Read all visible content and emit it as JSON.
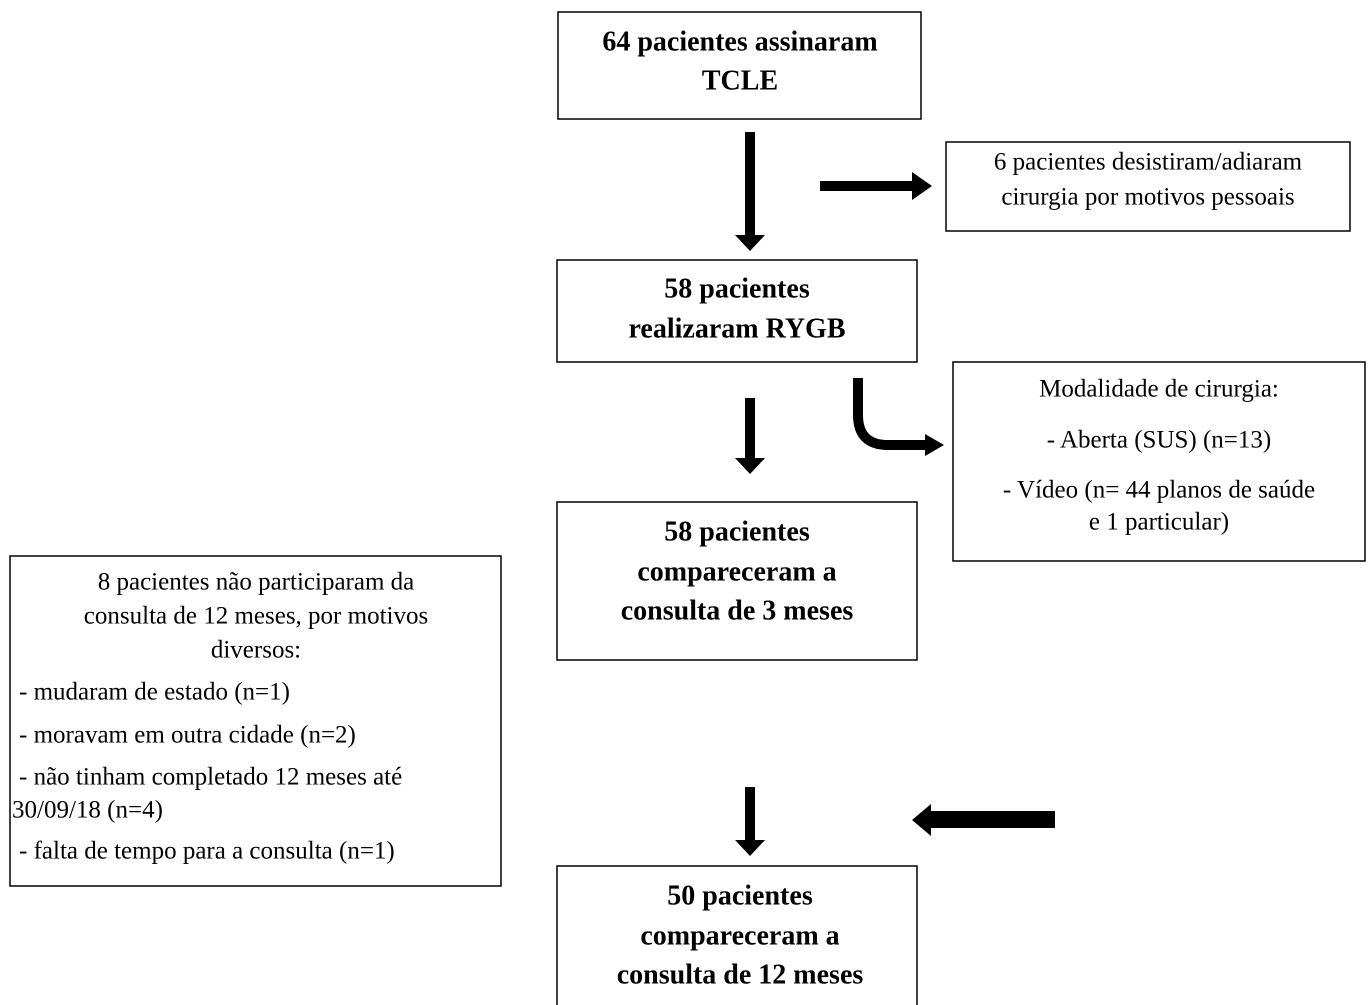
{
  "nodes": [
    {
      "lines": [
        "64 pacientes assinaram",
        "TCLE"
      ]
    },
    {
      "lines": [
        "6 pacientes desistiram/adiaram",
        "cirurgia por motivos pessoais"
      ]
    },
    {
      "lines": [
        "58 pacientes",
        "realizaram RYGB"
      ]
    },
    {
      "lines": [
        "Modalidade de cirurgia:",
        "- Aberta (SUS) (n=13)",
        "- Vídeo (n= 44 planos de saúde",
        "e 1 particular)"
      ]
    },
    {
      "lines": [
        "58 pacientes",
        "compareceram a",
        "consulta de 3 meses"
      ]
    },
    {
      "lines": [
        "8 pacientes não participaram da",
        "consulta de 12 meses, por motivos",
        "diversos:",
        "- mudaram de estado (n=1)",
        "- moravam em outra cidade (n=2)",
        "- não tinham completado 12 meses até",
        "30/09/18 (n=4)",
        "- falta de tempo para a consulta (n=1)"
      ]
    },
    {
      "lines": [
        "50 pacientes",
        "compareceram a",
        "consulta de 12 meses"
      ]
    }
  ]
}
